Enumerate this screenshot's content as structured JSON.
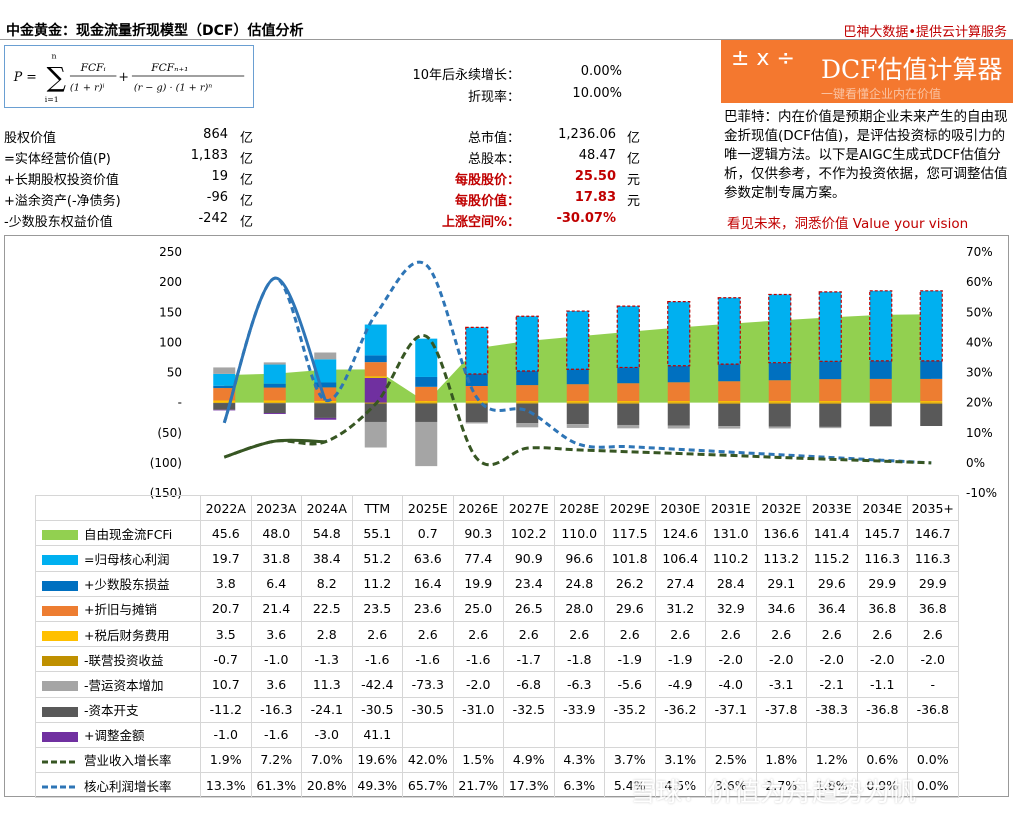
{
  "header": {
    "title": "中金黄金：现金流量折现模型（DCF）估值分析",
    "right": "巴神大数据•提供云计算服务"
  },
  "formula": {
    "lhs": "P =",
    "sum": "∑",
    "sum_top": "n",
    "sum_bot": "i=1",
    "t1_num": "FCFᵢ",
    "t1_den": "(1 + r)ⁱ",
    "plus": "+",
    "t2_num": "FCFₙ₊₁",
    "t2_den": "(r − g) · (1 + r)ⁿ"
  },
  "params": [
    {
      "label": "10年后永续增长：",
      "value": "0.00%"
    },
    {
      "label": "折现率：",
      "value": "10.00%"
    }
  ],
  "banner": {
    "ops": "± x ÷",
    "title": "DCF估值计算器",
    "sub": "一键看懂企业内在价值"
  },
  "left_items": [
    {
      "label": "股权价值",
      "value": "864",
      "unit": "亿"
    },
    {
      "label": "=实体经营价值(P)",
      "value": "1,183",
      "unit": "亿"
    },
    {
      "label": "+长期股权投资价值",
      "value": "19",
      "unit": "亿"
    },
    {
      "label": "+溢余资产(-净债务)",
      "value": "-96",
      "unit": "亿"
    },
    {
      "label": "-少数股东权益价值",
      "value": "-242",
      "unit": "亿"
    }
  ],
  "mid_items": [
    {
      "label": "总市值：",
      "value": "1,236.06",
      "unit": "亿"
    },
    {
      "label": "总股本：",
      "value": "48.47",
      "unit": "亿"
    },
    {
      "label": "每股股价：",
      "value": "25.50",
      "unit": "元"
    },
    {
      "label": "每股价值：",
      "value": "17.83",
      "unit": "元"
    },
    {
      "label": "上涨空间%：",
      "value": "-30.07%",
      "unit": ""
    }
  ],
  "description": "巴菲特：内在价值是预期企业未来产生的自由现金折现值(DCF估值)，是评估投资标的吸引力的唯一逻辑方法。以下是AIGC生成式DCF估值分析，仅供参考，不作为投资依据，您可调整估值参数定制专属方案。",
  "slogan": "看见未来，洞悉价值 Value your vision",
  "watermark": "雪球：价值为舟趋势为帆",
  "colors": {
    "fcf": "#92d050",
    "core": "#00b0f0",
    "minority": "#0070c0",
    "dep": "#ed7d31",
    "fin": "#ffc000",
    "assoc": "#bf9000",
    "wc": "#a5a5a5",
    "capex": "#595959",
    "adj": "#7030a0",
    "rev": "#375623",
    "profit": "#2e75b6",
    "red": "#c00000",
    "banner": "#f4782f"
  },
  "chart_data": {
    "type": "bar",
    "categories": [
      "2022A",
      "2023A",
      "2024A",
      "TTM",
      "2025E",
      "2026E",
      "2027E",
      "2028E",
      "2029E",
      "2030E",
      "2031E",
      "2032E",
      "2033E",
      "2034E",
      "2035+"
    ],
    "ylim": [
      -150,
      250
    ],
    "yticks": [
      "250",
      "200",
      "150",
      "100",
      "50",
      "-",
      "(50)",
      "(100)",
      "(150)"
    ],
    "y2lim": [
      -0.1,
      0.7
    ],
    "y2ticks": [
      "70%",
      "60%",
      "50%",
      "40%",
      "30%",
      "20%",
      "10%",
      "0%",
      "-10%"
    ],
    "series": [
      {
        "key": "fcf",
        "name": "自由现金流FCFi",
        "kind": "area",
        "values": [
          45.6,
          48.0,
          54.8,
          55.1,
          0.7,
          90.3,
          102.2,
          110.0,
          117.5,
          124.6,
          131.0,
          136.6,
          141.4,
          145.7,
          146.7
        ],
        "text": [
          "45.6",
          "48.0",
          "54.8",
          "55.1",
          "0.7",
          "90.3",
          "102.2",
          "110.0",
          "117.5",
          "124.6",
          "131.0",
          "136.6",
          "141.4",
          "145.7",
          "146.7"
        ]
      },
      {
        "key": "core",
        "name": "=归母核心利润",
        "kind": "bar",
        "values": [
          19.7,
          31.8,
          38.4,
          51.2,
          63.6,
          77.4,
          90.9,
          96.6,
          101.8,
          106.4,
          110.2,
          113.2,
          115.2,
          116.3,
          116.3
        ],
        "text": [
          "19.7",
          "31.8",
          "38.4",
          "51.2",
          "63.6",
          "77.4",
          "90.9",
          "96.6",
          "101.8",
          "106.4",
          "110.2",
          "113.2",
          "115.2",
          "116.3",
          "116.3"
        ]
      },
      {
        "key": "minority",
        "name": "+少数股东损益",
        "kind": "bar",
        "values": [
          3.8,
          6.4,
          8.2,
          11.2,
          16.4,
          19.9,
          23.4,
          24.8,
          26.2,
          27.4,
          28.4,
          29.1,
          29.6,
          29.9,
          29.9
        ],
        "text": [
          "3.8",
          "6.4",
          "8.2",
          "11.2",
          "16.4",
          "19.9",
          "23.4",
          "24.8",
          "26.2",
          "27.4",
          "28.4",
          "29.1",
          "29.6",
          "29.9",
          "29.9"
        ]
      },
      {
        "key": "dep",
        "name": "+折旧与摊销",
        "kind": "bar",
        "values": [
          20.7,
          21.4,
          22.5,
          23.5,
          23.6,
          25.0,
          26.5,
          28.0,
          29.6,
          31.2,
          32.9,
          34.6,
          36.4,
          36.8,
          36.8
        ],
        "text": [
          "20.7",
          "21.4",
          "22.5",
          "23.5",
          "23.6",
          "25.0",
          "26.5",
          "28.0",
          "29.6",
          "31.2",
          "32.9",
          "34.6",
          "36.4",
          "36.8",
          "36.8"
        ]
      },
      {
        "key": "fin",
        "name": "+税后财务费用",
        "kind": "bar",
        "values": [
          3.5,
          3.6,
          2.8,
          2.6,
          2.6,
          2.6,
          2.6,
          2.6,
          2.6,
          2.6,
          2.6,
          2.6,
          2.6,
          2.6,
          2.6
        ],
        "text": [
          "3.5",
          "3.6",
          "2.8",
          "2.6",
          "2.6",
          "2.6",
          "2.6",
          "2.6",
          "2.6",
          "2.6",
          "2.6",
          "2.6",
          "2.6",
          "2.6",
          "2.6"
        ]
      },
      {
        "key": "assoc",
        "name": "-联营投资收益",
        "kind": "bar",
        "values": [
          -0.7,
          -1.0,
          -1.3,
          -1.6,
          -1.6,
          -1.6,
          -1.7,
          -1.8,
          -1.9,
          -1.9,
          -2.0,
          -2.0,
          -2.0,
          -2.0,
          -2.0
        ],
        "text": [
          "-0.7",
          "-1.0",
          "-1.3",
          "-1.6",
          "-1.6",
          "-1.6",
          "-1.7",
          "-1.8",
          "-1.9",
          "-1.9",
          "-2.0",
          "-2.0",
          "-2.0",
          "-2.0",
          "-2.0"
        ]
      },
      {
        "key": "wc",
        "name": "-营运资本增加",
        "kind": "bar",
        "values": [
          10.7,
          3.6,
          11.3,
          -42.4,
          -73.3,
          -2.0,
          -6.8,
          -6.3,
          -5.6,
          -4.9,
          -4.0,
          -3.1,
          -2.1,
          -1.1,
          0
        ],
        "text": [
          "10.7",
          "3.6",
          "11.3",
          "-42.4",
          "-73.3",
          "-2.0",
          "-6.8",
          "-6.3",
          "-5.6",
          "-4.9",
          "-4.0",
          "-3.1",
          "-2.1",
          "-1.1",
          "-"
        ]
      },
      {
        "key": "capex",
        "name": "-资本开支",
        "kind": "bar",
        "values": [
          -11.2,
          -16.3,
          -24.1,
          -30.5,
          -30.5,
          -31.0,
          -32.5,
          -33.9,
          -35.2,
          -36.2,
          -37.1,
          -37.8,
          -38.3,
          -36.8,
          -36.8
        ],
        "text": [
          "-11.2",
          "-16.3",
          "-24.1",
          "-30.5",
          "-30.5",
          "-31.0",
          "-32.5",
          "-33.9",
          "-35.2",
          "-36.2",
          "-37.1",
          "-37.8",
          "-38.3",
          "-36.8",
          "-36.8"
        ]
      },
      {
        "key": "adj",
        "name": "+调整金额",
        "kind": "bar",
        "values": [
          -1.0,
          -1.6,
          -3.0,
          41.1,
          null,
          null,
          null,
          null,
          null,
          null,
          null,
          null,
          null,
          null,
          null
        ],
        "text": [
          "-1.0",
          "-1.6",
          "-3.0",
          "41.1",
          "",
          "",
          "",
          "",
          "",
          "",
          "",
          "",
          "",
          "",
          ""
        ]
      },
      {
        "key": "rev",
        "name": "营业收入增长率",
        "kind": "line",
        "values": [
          0.019,
          0.072,
          0.07,
          0.196,
          0.42,
          0.015,
          0.049,
          0.043,
          0.037,
          0.031,
          0.025,
          0.018,
          0.012,
          0.006,
          0.0
        ],
        "text": [
          "1.9%",
          "7.2%",
          "7.0%",
          "19.6%",
          "42.0%",
          "1.5%",
          "4.9%",
          "4.3%",
          "3.7%",
          "3.1%",
          "2.5%",
          "1.8%",
          "1.2%",
          "0.6%",
          "0.0%"
        ]
      },
      {
        "key": "profit",
        "name": "核心利润增长率",
        "kind": "line",
        "values": [
          0.133,
          0.613,
          0.208,
          0.493,
          0.657,
          0.217,
          0.173,
          0.063,
          0.054,
          0.045,
          0.036,
          0.027,
          0.018,
          0.009,
          0.0
        ],
        "text": [
          "13.3%",
          "61.3%",
          "20.8%",
          "49.3%",
          "65.7%",
          "21.7%",
          "17.3%",
          "6.3%",
          "5.4%",
          "4.5%",
          "3.6%",
          "2.7%",
          "1.8%",
          "0.9%",
          "0.0%"
        ]
      }
    ]
  }
}
